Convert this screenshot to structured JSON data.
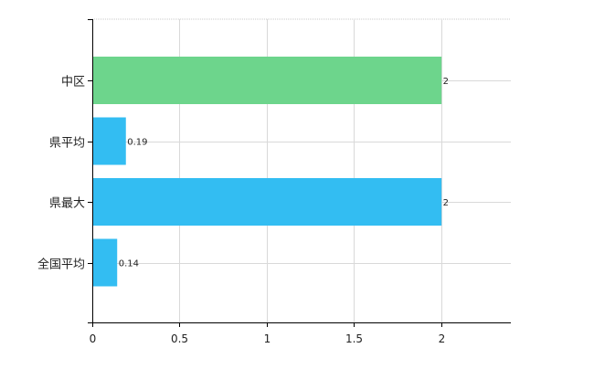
{
  "chart_data": {
    "type": "bar",
    "orientation": "horizontal",
    "categories": [
      "中区",
      "県平均",
      "県最大",
      "全国平均"
    ],
    "values": [
      2,
      0.19,
      2,
      0.14
    ],
    "data_labels": [
      "2",
      "0.19",
      "2",
      "0.14"
    ],
    "bar_colors": [
      "#6dd58c",
      "#33bdf2",
      "#33bdf2",
      "#33bdf2"
    ],
    "xlim": [
      0,
      2.4
    ],
    "x_ticks": [
      0,
      0.5,
      1,
      1.5,
      2
    ],
    "x_tick_labels": [
      "0",
      "0.5",
      "1",
      "1.5",
      "2"
    ],
    "grid": true,
    "title": "",
    "xlabel": "",
    "ylabel": ""
  }
}
